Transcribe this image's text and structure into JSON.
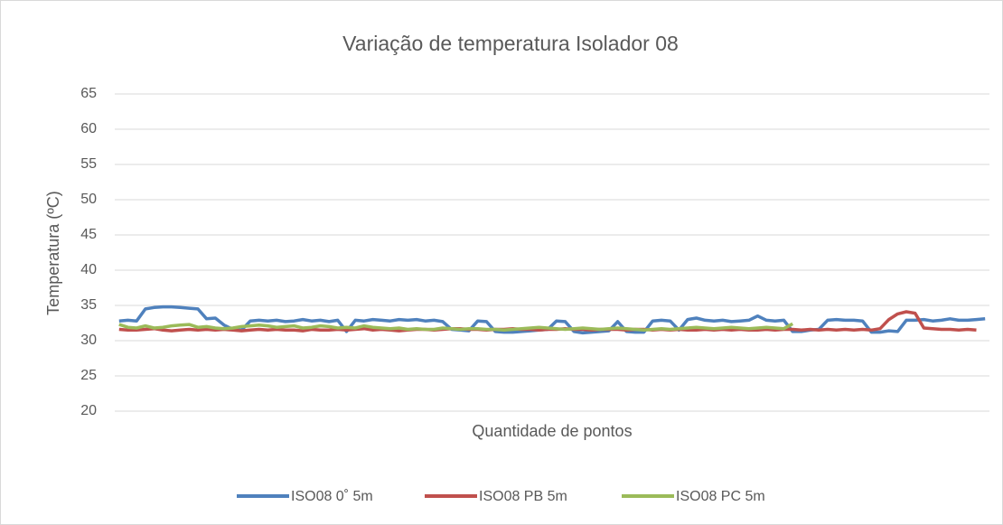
{
  "chart_data": {
    "type": "line",
    "title": "Variação de temperatura Isolador 08",
    "x_label": "Quantidade de pontos",
    "y_label": "Temperatura (ºC)",
    "ylim": [
      20,
      65
    ],
    "yticks": [
      20,
      25,
      30,
      35,
      40,
      45,
      50,
      55,
      60,
      65
    ],
    "grid": true,
    "legend": "bottom",
    "series": [
      {
        "name": "ISO08 0˚ 5m",
        "color": "#4f81bd",
        "values": [
          32.8,
          32.9,
          32.8,
          34.5,
          34.7,
          34.8,
          34.8,
          34.7,
          34.6,
          34.5,
          33.1,
          33.2,
          32.2,
          31.6,
          31.5,
          32.8,
          32.9,
          32.8,
          32.9,
          32.7,
          32.8,
          33,
          32.8,
          32.9,
          32.7,
          32.9,
          31.3,
          32.9,
          32.8,
          33,
          32.9,
          32.8,
          33,
          32.9,
          33,
          32.8,
          32.9,
          32.7,
          31.6,
          31.5,
          31.4,
          32.8,
          32.7,
          31.3,
          31.2,
          31.2,
          31.3,
          31.4,
          31.5,
          31.6,
          32.8,
          32.7,
          31.3,
          31.1,
          31.2,
          31.3,
          31.4,
          32.7,
          31.3,
          31.2,
          31.2,
          32.8,
          32.9,
          32.8,
          31.5,
          33,
          33.2,
          32.9,
          32.8,
          32.9,
          32.7,
          32.8,
          32.9,
          33.5,
          32.9,
          32.8,
          32.9,
          31.3,
          31.3,
          31.5,
          31.6,
          32.9,
          33,
          32.9,
          32.9,
          32.8,
          31.2,
          31.2,
          31.4,
          31.3,
          32.9,
          32.9,
          33,
          32.8,
          32.9,
          33.1,
          32.9,
          32.9,
          33,
          33.1
        ]
      },
      {
        "name": "ISO08 PB 5m",
        "color": "#c0504d",
        "values": [
          31.6,
          31.5,
          31.5,
          31.6,
          31.7,
          31.5,
          31.4,
          31.5,
          31.6,
          31.5,
          31.6,
          31.5,
          31.6,
          31.5,
          31.4,
          31.5,
          31.6,
          31.5,
          31.6,
          31.5,
          31.5,
          31.4,
          31.6,
          31.5,
          31.5,
          31.6,
          31.5,
          31.6,
          31.7,
          31.5,
          31.6,
          31.5,
          31.4,
          31.5,
          31.6,
          31.6,
          31.5,
          31.6,
          31.7,
          31.7,
          31.6,
          31.6,
          31.5,
          31.6,
          31.6,
          31.7,
          31.6,
          31.6,
          31.5,
          31.6,
          31.6,
          31.7,
          31.6,
          31.6,
          31.5,
          31.6,
          31.6,
          31.6,
          31.5,
          31.6,
          31.6,
          31.5,
          31.6,
          31.5,
          31.6,
          31.5,
          31.5,
          31.6,
          31.5,
          31.6,
          31.5,
          31.6,
          31.5,
          31.5,
          31.6,
          31.5,
          31.6,
          31.6,
          31.5,
          31.6,
          31.5,
          31.6,
          31.5,
          31.6,
          31.5,
          31.6,
          31.5,
          31.7,
          33,
          33.8,
          34.1,
          33.9,
          31.8,
          31.7,
          31.6,
          31.6,
          31.5,
          31.6,
          31.5,
          null
        ]
      },
      {
        "name": "ISO08 PC 5m",
        "color": "#9bbb59",
        "values": [
          32.3,
          31.9,
          31.8,
          32.1,
          31.8,
          31.9,
          32.1,
          32.2,
          32.3,
          31.9,
          32,
          31.8,
          31.7,
          31.8,
          32,
          32.1,
          32.2,
          32.1,
          31.9,
          32,
          32.1,
          31.8,
          31.9,
          32.1,
          32,
          31.8,
          31.9,
          31.8,
          32.1,
          31.9,
          31.8,
          31.7,
          31.8,
          31.6,
          31.7,
          31.6,
          31.6,
          31.8,
          31.7,
          31.6,
          31.7,
          31.7,
          31.6,
          31.6,
          31.5,
          31.6,
          31.7,
          31.8,
          31.9,
          31.8,
          31.7,
          31.6,
          31.7,
          31.8,
          31.7,
          31.6,
          31.7,
          31.8,
          31.7,
          31.6,
          31.5,
          31.6,
          31.7,
          31.6,
          31.7,
          31.8,
          31.9,
          31.8,
          31.7,
          31.8,
          31.9,
          31.8,
          31.7,
          31.8,
          31.9,
          31.8,
          31.7,
          32.4,
          null,
          null,
          null,
          null,
          null,
          null,
          null,
          null,
          null,
          null,
          null,
          null,
          null,
          null,
          null,
          null,
          null,
          null,
          null,
          null,
          null,
          null
        ]
      }
    ]
  }
}
